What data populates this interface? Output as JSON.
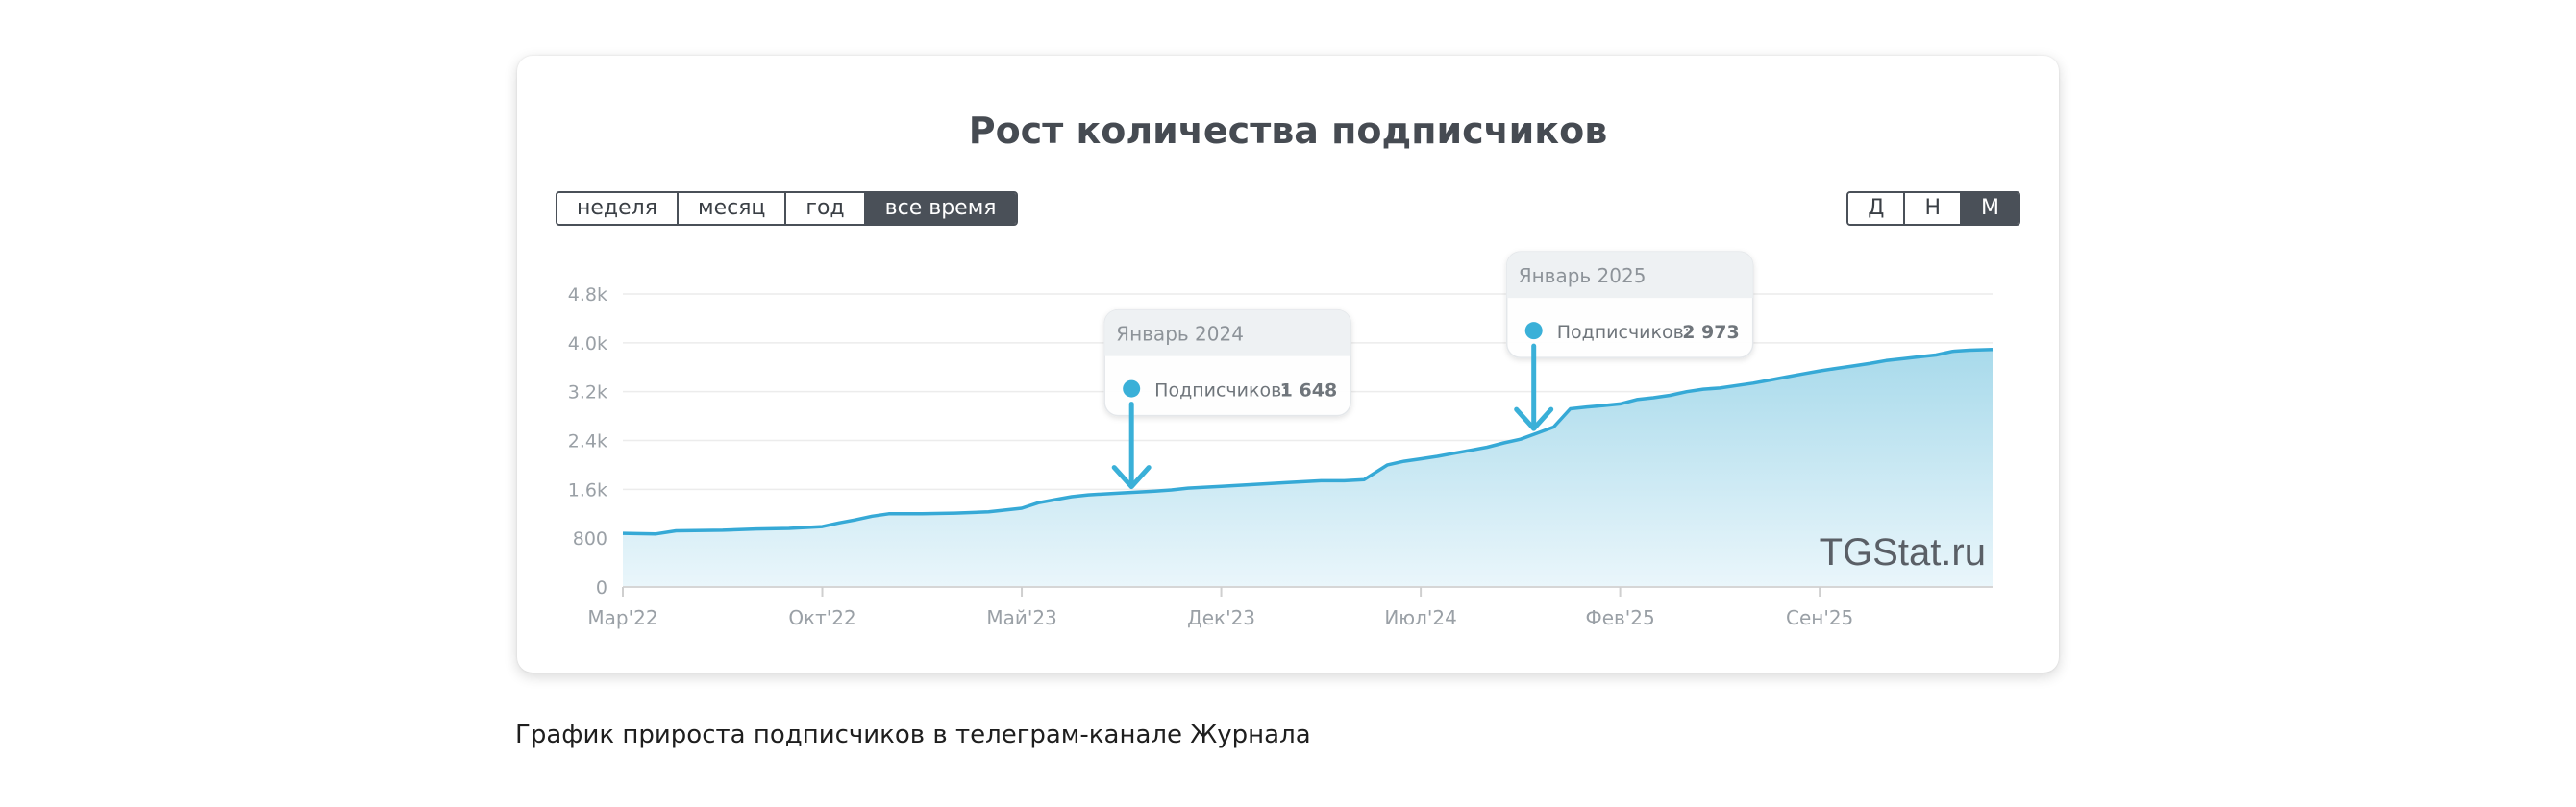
{
  "caption": "График прироста подписчиков в телеграм-канале Журнала",
  "watermark": "TGStat.ru",
  "period_buttons": [
    {
      "label": "неделя",
      "active": false
    },
    {
      "label": "месяц",
      "active": false
    },
    {
      "label": "год",
      "active": false
    },
    {
      "label": "все время",
      "active": true
    }
  ],
  "granularity_buttons": [
    {
      "label": "Д",
      "active": false
    },
    {
      "label": "Н",
      "active": false
    },
    {
      "label": "М",
      "active": true
    }
  ],
  "tooltips": [
    {
      "title": "Январь 2024",
      "label": "Подписчиков:",
      "value": "1 648",
      "x": 15.3
    },
    {
      "title": "Январь 2025",
      "label": "Подписчиков:",
      "value": "2 973",
      "x": 27.4
    }
  ],
  "colors": {
    "line": "#36a9d6",
    "fill_top": "#a8daeb",
    "fill_bottom": "#eaf6fb",
    "marker": "#3ab0d8"
  },
  "chart_data": {
    "type": "area",
    "title": "Рост количества подписчиков",
    "xlabel": "",
    "ylabel": "",
    "ylim": [
      0,
      4800
    ],
    "xlim": [
      0,
      41.2
    ],
    "y_ticks": [
      0,
      800,
      1600,
      2400,
      3200,
      4000,
      4800
    ],
    "y_tick_labels": [
      "0",
      "800",
      "1.6k",
      "2.4k",
      "3.2k",
      "4.0k",
      "4.8k"
    ],
    "x_ticks": [
      0,
      6,
      12,
      18,
      24,
      30,
      36
    ],
    "x_tick_labels": [
      "Мар'22",
      "Окт'22",
      "Май'23",
      "Дек'23",
      "Июл'24",
      "Фев'25",
      "Сен'25"
    ],
    "legend": "none",
    "series": [
      {
        "x": [
          0,
          1,
          1.6,
          3,
          4,
          5,
          6,
          6.5,
          7,
          7.5,
          8,
          8.5,
          9,
          10,
          11,
          11.5,
          12,
          12.5,
          13,
          13.5,
          14,
          15,
          16,
          16.5,
          17,
          18,
          19,
          20,
          21,
          21.7,
          22.3,
          23,
          23.5,
          24,
          24.5,
          25,
          25.5,
          26,
          26.5,
          27,
          27.5,
          28,
          28.5,
          29,
          29.5,
          30,
          30.5,
          31,
          31.5,
          32,
          32.5,
          33,
          33.5,
          34,
          34.5,
          35,
          35.5,
          36,
          36.5,
          37,
          37.5,
          38,
          38.5,
          39,
          39.5,
          40,
          40.5,
          41.2
        ],
        "y": [
          880,
          870,
          920,
          930,
          950,
          960,
          990,
          1050,
          1100,
          1160,
          1200,
          1200,
          1200,
          1210,
          1230,
          1260,
          1290,
          1380,
          1430,
          1480,
          1510,
          1540,
          1570,
          1590,
          1620,
          1648,
          1680,
          1710,
          1740,
          1740,
          1760,
          2000,
          2060,
          2100,
          2140,
          2190,
          2240,
          2290,
          2360,
          2420,
          2520,
          2620,
          2920,
          2950,
          2973,
          3000,
          3070,
          3100,
          3140,
          3200,
          3240,
          3260,
          3300,
          3340,
          3390,
          3440,
          3490,
          3540,
          3580,
          3620,
          3660,
          3710,
          3740,
          3770,
          3800,
          3860,
          3880,
          3890
        ]
      }
    ]
  }
}
